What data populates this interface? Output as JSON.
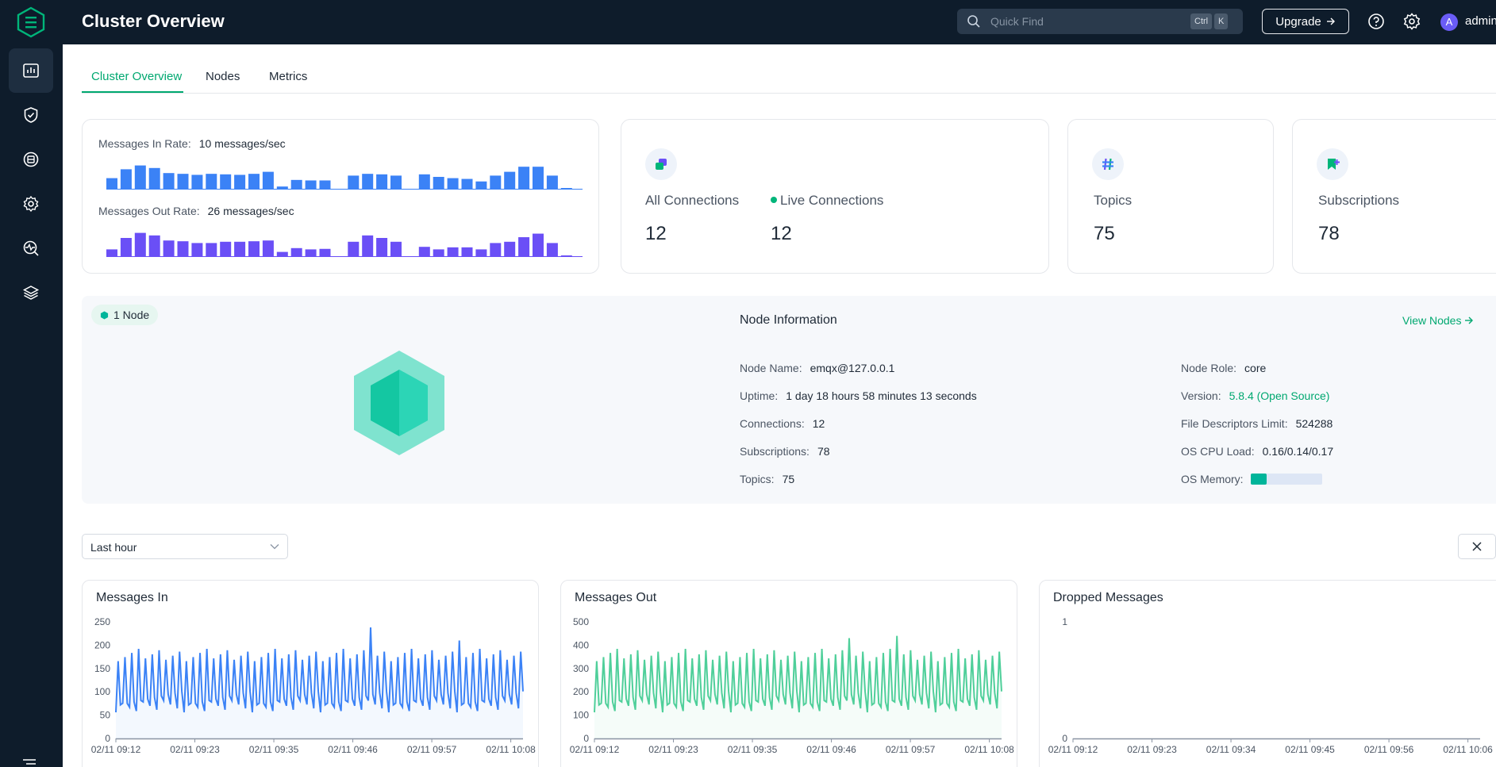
{
  "header": {
    "title": "Cluster Overview",
    "search_placeholder": "Quick Find",
    "shortcut_ctrl": "Ctrl",
    "shortcut_key": "K",
    "upgrade_label": "Upgrade",
    "user_initial": "A",
    "user_name": "admin"
  },
  "sidebar": {
    "items": [
      {
        "icon": "dashboard-icon",
        "active": true
      },
      {
        "icon": "shield-icon"
      },
      {
        "icon": "data-icon"
      },
      {
        "icon": "settings-icon"
      },
      {
        "icon": "diagnose-icon"
      },
      {
        "icon": "layers-icon"
      }
    ]
  },
  "tabs": [
    "Cluster Overview",
    "Nodes",
    "Metrics"
  ],
  "rates": {
    "in_label": "Messages In Rate:",
    "in_value": "10 messages/sec",
    "out_label": "Messages Out Rate:",
    "out_value": "26 messages/sec",
    "in_color": "#3b82f6",
    "out_color": "#6a4ff6",
    "in_bars": [
      0.45,
      0.8,
      0.95,
      0.85,
      0.65,
      0.62,
      0.58,
      0.62,
      0.6,
      0.58,
      0.62,
      0.7,
      0.12,
      0.38,
      0.36,
      0.36,
      0,
      0.55,
      0.62,
      0.6,
      0.55,
      0,
      0.6,
      0.5,
      0.45,
      0.42,
      0.32,
      0.55,
      0.7,
      0.9,
      0.9,
      0.55,
      0.05
    ],
    "out_bars": [
      0.3,
      0.75,
      0.95,
      0.85,
      0.65,
      0.62,
      0.55,
      0.55,
      0.6,
      0.6,
      0.62,
      0.65,
      0.2,
      0.35,
      0.3,
      0.32,
      0,
      0.6,
      0.85,
      0.75,
      0.6,
      0,
      0.4,
      0.3,
      0.38,
      0.38,
      0.3,
      0.55,
      0.6,
      0.78,
      0.92,
      0.55,
      0.05
    ]
  },
  "connections": {
    "all_label": "All Connections",
    "all_value": "12",
    "live_label": "Live Connections",
    "live_value": "12"
  },
  "topics": {
    "label": "Topics",
    "value": "75"
  },
  "subscriptions": {
    "label": "Subscriptions",
    "value": "78"
  },
  "node": {
    "badge": "1 Node",
    "title": "Node Information",
    "view_link": "View Nodes",
    "left": [
      {
        "label": "Node Name:",
        "value": "emqx@127.0.0.1"
      },
      {
        "label": "Uptime:",
        "value": "1 day 18 hours 58 minutes 13 seconds"
      },
      {
        "label": "Connections:",
        "value": "12"
      },
      {
        "label": "Subscriptions:",
        "value": "78"
      },
      {
        "label": "Topics:",
        "value": "75"
      }
    ],
    "right": [
      {
        "label": "Node Role:",
        "value": "core"
      },
      {
        "label": "Version:",
        "value": "5.8.4 (Open Source)"
      },
      {
        "label": "File Descriptors Limit:",
        "value": "524288"
      },
      {
        "label": "OS CPU Load:",
        "value": "0.16/0.14/0.17"
      },
      {
        "label": "OS Memory:",
        "value": ""
      }
    ],
    "os_memory_fraction": 0.22
  },
  "time_range": {
    "selected": "Last hour"
  },
  "chart_data": [
    {
      "type": "line",
      "title": "Messages In",
      "color": "#3b82f6",
      "ylim": [
        0,
        250
      ],
      "yticks": [
        "0",
        "50",
        "100",
        "150",
        "200",
        "250"
      ],
      "xticks": [
        "02/11 09:12",
        "02/11 09:23",
        "02/11 09:35",
        "02/11 09:46",
        "02/11 09:57",
        "02/11 10:08"
      ],
      "pattern": {
        "base": 80,
        "peak": 195,
        "count": 60,
        "spikes": {
          "37": 238,
          "50": 210
        }
      }
    },
    {
      "type": "line",
      "title": "Messages Out",
      "color": "#4fcf9a",
      "ylim": [
        0,
        500
      ],
      "yticks": [
        "0",
        "100",
        "200",
        "300",
        "400",
        "500"
      ],
      "xticks": [
        "02/11 09:12",
        "02/11 09:23",
        "02/11 09:35",
        "02/11 09:46",
        "02/11 09:57",
        "02/11 10:08"
      ],
      "pattern": {
        "base": 160,
        "peak": 390,
        "count": 60,
        "spikes": {
          "37": 430,
          "44": 440
        }
      }
    },
    {
      "type": "line",
      "title": "Dropped Messages",
      "color": "#3b82f6",
      "ylim": [
        0,
        1
      ],
      "yticks": [
        "0",
        "1"
      ],
      "xticks": [
        "02/11 09:12",
        "02/11 09:23",
        "02/11 09:34",
        "02/11 09:45",
        "02/11 09:56",
        "02/11 10:06"
      ],
      "pattern": {
        "base": 0,
        "peak": 0,
        "count": 0,
        "spikes": {}
      }
    }
  ]
}
